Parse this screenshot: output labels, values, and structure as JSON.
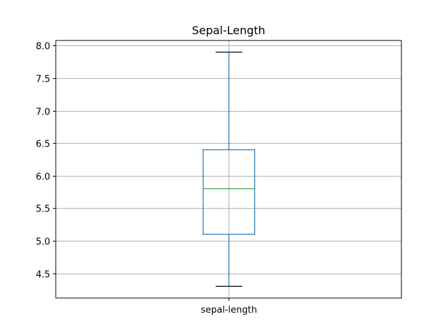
{
  "chart_data": {
    "type": "box",
    "title": "Sepal-Length",
    "categories": [
      "sepal-length"
    ],
    "boxes": [
      {
        "category": "sepal-length",
        "whisker_low": 4.3,
        "q1": 5.1,
        "median": 5.8,
        "q3": 6.4,
        "whisker_high": 7.9
      }
    ],
    "ylim": [
      4.12,
      8.08
    ],
    "yticks": [
      4.5,
      5.0,
      5.5,
      6.0,
      6.5,
      7.0,
      7.5,
      8.0
    ],
    "ytick_labels": [
      "4.5",
      "5.0",
      "5.5",
      "6.0",
      "6.5",
      "7.0",
      "7.5",
      "8.0"
    ],
    "grid": true,
    "colors": {
      "box": "#1f77b4",
      "median": "#2ca02c",
      "grid": "#b0b0b0",
      "axes": "#000000"
    }
  }
}
